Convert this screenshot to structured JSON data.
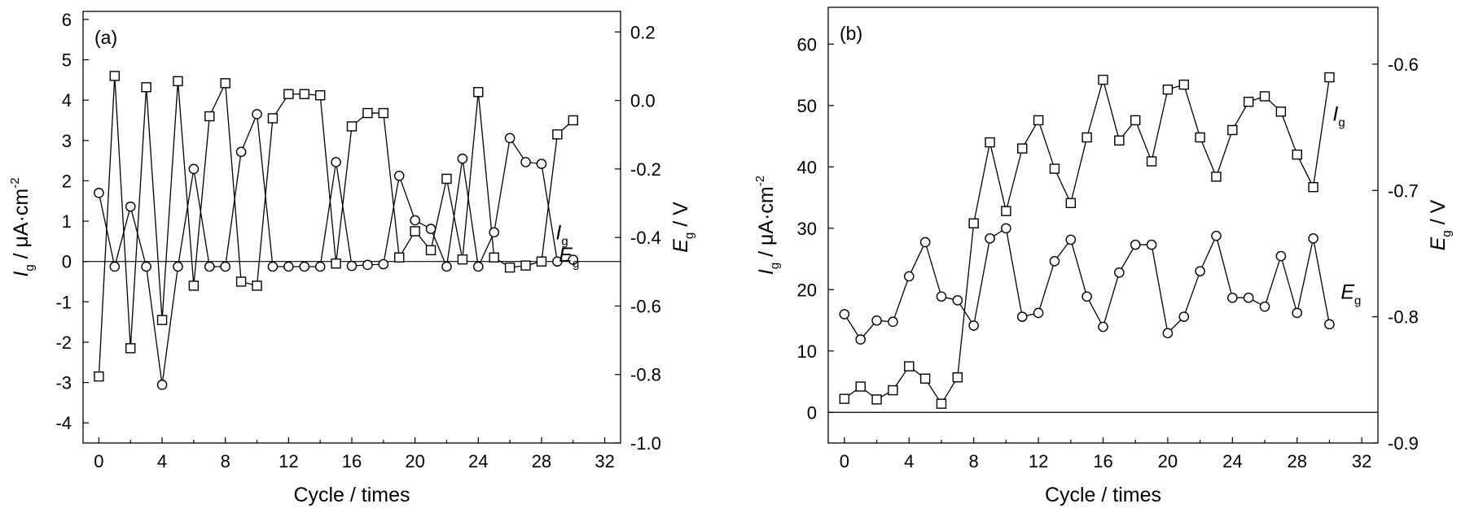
{
  "chart_data": [
    {
      "type": "line",
      "panel_label": "(a)",
      "xlabel": "Cycle / times",
      "ylabel": {
        "main": "I",
        "sub": "g",
        "rest": " / μA·cm",
        "sup": "-2"
      },
      "y2label": {
        "main": "E",
        "sub": "g",
        "rest": " / V"
      },
      "xlim": [
        -1,
        33
      ],
      "xticks": [
        0,
        4,
        8,
        12,
        16,
        20,
        24,
        28,
        32
      ],
      "ylim": [
        -4.5,
        6.2
      ],
      "yticks": [
        -4,
        -3,
        -2,
        -1,
        0,
        1,
        2,
        3,
        4,
        5,
        6
      ],
      "y2lim": [
        -1.0,
        0.26
      ],
      "y2ticks": [
        "-1.0",
        "-0.8",
        "-0.6",
        "-0.4",
        "-0.2",
        "0.0",
        "0.2"
      ],
      "zero_line": true,
      "series": [
        {
          "key": "Ig",
          "name": "I",
          "name_sub": "g",
          "axis": "left",
          "marker": "square",
          "label_at": [
            28.9,
            0.55
          ],
          "x": [
            0,
            1,
            2,
            3,
            4,
            5,
            6,
            7,
            8,
            9,
            10,
            11,
            12,
            13,
            14,
            15,
            16,
            17,
            18,
            19,
            20,
            21,
            22,
            23,
            24,
            25,
            26,
            27,
            28,
            29,
            30
          ],
          "y": [
            -2.85,
            4.6,
            -2.15,
            4.32,
            -1.45,
            4.47,
            -0.6,
            3.6,
            4.42,
            -0.5,
            -0.6,
            3.55,
            4.15,
            4.15,
            4.12,
            -0.05,
            3.35,
            3.68,
            3.68,
            0.1,
            0.75,
            0.28,
            2.05,
            0.05,
            4.2,
            0.1,
            -0.15,
            -0.1,
            0.0,
            3.15,
            3.5
          ]
        },
        {
          "key": "Eg",
          "name": "E",
          "name_sub": "g",
          "axis": "right",
          "marker": "circle",
          "label_at": [
            29.1,
            -0.01
          ],
          "x": [
            0,
            1,
            2,
            3,
            4,
            5,
            6,
            7,
            8,
            9,
            10,
            11,
            12,
            13,
            14,
            15,
            16,
            17,
            18,
            19,
            20,
            21,
            22,
            23,
            24,
            25,
            26,
            27,
            28,
            29,
            30
          ],
          "y": [
            -0.27,
            -0.485,
            -0.31,
            -0.485,
            -0.83,
            -0.485,
            -0.2,
            -0.485,
            -0.485,
            -0.15,
            -0.04,
            -0.485,
            -0.485,
            -0.485,
            -0.485,
            -0.18,
            -0.483,
            -0.48,
            -0.478,
            -0.22,
            -0.35,
            -0.375,
            -0.485,
            -0.17,
            -0.485,
            -0.385,
            -0.11,
            -0.18,
            -0.185,
            -0.47,
            -0.465
          ]
        }
      ]
    },
    {
      "type": "line",
      "panel_label": "(b)",
      "xlabel": "Cycle / times",
      "ylabel": {
        "main": "I",
        "sub": "g",
        "rest": " / μA·cm",
        "sup": "-2"
      },
      "y2label": {
        "main": "E",
        "sub": "g",
        "rest": " / V"
      },
      "xlim": [
        -1,
        33
      ],
      "xticks": [
        0,
        4,
        8,
        12,
        16,
        20,
        24,
        28,
        32
      ],
      "ylim": [
        -5,
        66
      ],
      "yticks": [
        0,
        10,
        20,
        30,
        40,
        50,
        60
      ],
      "y2lim": [
        -0.9,
        -0.555
      ],
      "y2ticks": [
        "-0.9",
        "-0.8",
        "-0.7",
        "-0.6"
      ],
      "zero_line": true,
      "series": [
        {
          "key": "Ig",
          "name": "I",
          "name_sub": "g",
          "axis": "left",
          "marker": "square",
          "label_at": [
            30.2,
            47.5
          ],
          "x": [
            0,
            1,
            2,
            3,
            4,
            5,
            6,
            7,
            8,
            9,
            10,
            11,
            12,
            13,
            14,
            15,
            16,
            17,
            18,
            19,
            20,
            21,
            22,
            23,
            24,
            25,
            26,
            27,
            28,
            29,
            30
          ],
          "y": [
            2.2,
            4.2,
            2.1,
            3.6,
            7.5,
            5.5,
            1.4,
            5.7,
            30.8,
            44.0,
            32.8,
            43.0,
            47.6,
            39.7,
            34.1,
            44.8,
            54.2,
            44.3,
            47.6,
            40.9,
            52.6,
            53.4,
            44.8,
            38.4,
            46.0,
            50.6,
            51.5,
            49.0,
            42.0,
            36.7,
            54.6
          ]
        },
        {
          "key": "Eg",
          "name": "E",
          "name_sub": "g",
          "axis": "right",
          "marker": "circle",
          "label_at": [
            30.7,
            18.5
          ],
          "x": [
            0,
            1,
            2,
            3,
            4,
            5,
            6,
            7,
            8,
            9,
            10,
            11,
            12,
            13,
            14,
            15,
            16,
            17,
            18,
            19,
            20,
            21,
            22,
            23,
            24,
            25,
            26,
            27,
            28,
            29,
            30
          ],
          "y": [
            -0.798,
            -0.818,
            -0.803,
            -0.804,
            -0.768,
            -0.741,
            -0.784,
            -0.787,
            -0.807,
            -0.738,
            -0.73,
            -0.8,
            -0.797,
            -0.756,
            -0.739,
            -0.784,
            -0.808,
            -0.765,
            -0.743,
            -0.743,
            -0.813,
            -0.8,
            -0.764,
            -0.736,
            -0.785,
            -0.785,
            -0.792,
            -0.752,
            -0.797,
            -0.738,
            -0.806
          ]
        }
      ]
    }
  ]
}
